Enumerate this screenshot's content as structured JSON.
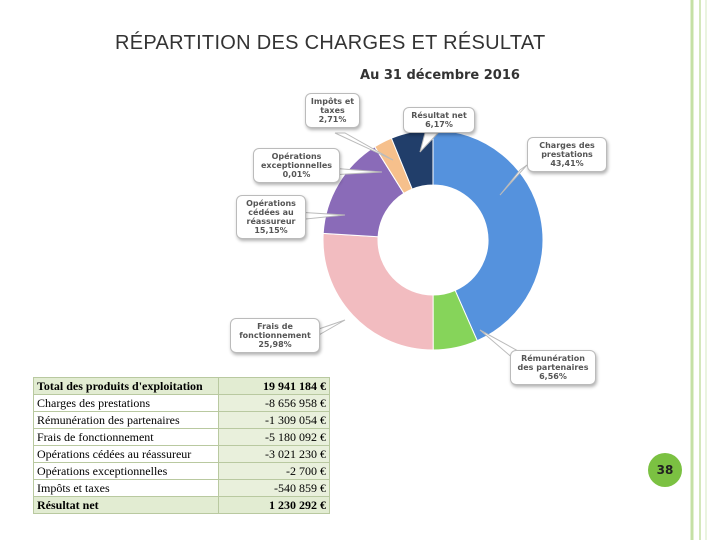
{
  "slide_title": "RÉPARTITION DES CHARGES ET RÉSULTAT",
  "chart_data": {
    "type": "donut",
    "subtitle": "Au 31 décembre 2016",
    "categories": [
      "Charges des prestations",
      "Rémunération des partenaires",
      "Frais de fonctionnement",
      "Opérations cédées au réassureur",
      "Opérations exceptionnelles",
      "Impôts et taxes",
      "Résultat net"
    ],
    "values": [
      43.41,
      6.56,
      25.98,
      15.15,
      0.01,
      2.71,
      6.17
    ],
    "value_labels": [
      "43,41%",
      "6,56%",
      "25,98%",
      "15,15%",
      "0,01%",
      "2,71%",
      "6,17%"
    ],
    "colors": [
      "#5592dd",
      "#86d45a",
      "#f2bcc0",
      "#8a6bb8",
      "#f3d6c4",
      "#f6c08c",
      "#213e6a"
    ]
  },
  "table": {
    "rows": [
      [
        "Total des produits d'exploitation",
        "19 941 184 €"
      ],
      [
        "Charges des prestations",
        "-8 656 958 €"
      ],
      [
        "Rémunération des partenaires",
        "-1 309 054 €"
      ],
      [
        "Frais de fonctionnement",
        "-5 180 092 €"
      ],
      [
        "Opérations cédées au réassureur",
        "-3 021 230 €"
      ],
      [
        "Opérations exceptionnelles",
        "-2 700 €"
      ],
      [
        "Impôts et taxes",
        "-540 859 €"
      ],
      [
        "Résultat net",
        "1 230 292 €"
      ]
    ]
  },
  "page_number": "38"
}
